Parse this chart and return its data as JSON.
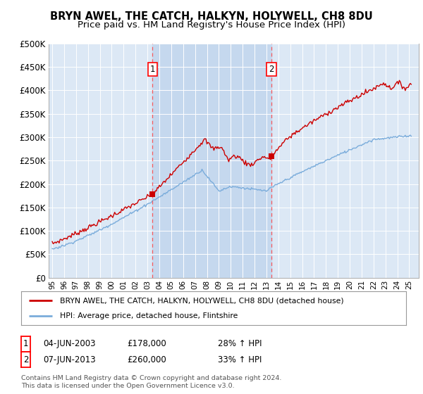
{
  "title": "BRYN AWEL, THE CATCH, HALKYN, HOLYWELL, CH8 8DU",
  "subtitle": "Price paid vs. HM Land Registry's House Price Index (HPI)",
  "ylim": [
    0,
    500000
  ],
  "yticks": [
    0,
    50000,
    100000,
    150000,
    200000,
    250000,
    300000,
    350000,
    400000,
    450000,
    500000
  ],
  "ytick_labels": [
    "£0",
    "£50K",
    "£100K",
    "£150K",
    "£200K",
    "£250K",
    "£300K",
    "£350K",
    "£400K",
    "£450K",
    "£500K"
  ],
  "xtick_years": [
    1995,
    1996,
    1997,
    1998,
    1999,
    2000,
    2001,
    2002,
    2003,
    2004,
    2005,
    2006,
    2007,
    2008,
    2009,
    2010,
    2011,
    2012,
    2013,
    2014,
    2015,
    2016,
    2017,
    2018,
    2019,
    2020,
    2021,
    2022,
    2023,
    2024,
    2025
  ],
  "xlim_start": 1994.7,
  "xlim_end": 2025.8,
  "sale1_x": 2003.43,
  "sale1_y": 178000,
  "sale2_x": 2013.43,
  "sale2_y": 260000,
  "line_color_property": "#cc0000",
  "line_color_hpi": "#7aacdb",
  "plot_bg_color": "#dce8f5",
  "shade_color": "#c5d8ee",
  "grid_color": "#ffffff",
  "legend_label_property": "BRYN AWEL, THE CATCH, HALKYN, HOLYWELL, CH8 8DU (detached house)",
  "legend_label_hpi": "HPI: Average price, detached house, Flintshire",
  "sale1_date": "04-JUN-2003",
  "sale1_price": "£178,000",
  "sale1_hpi": "28% ↑ HPI",
  "sale2_date": "07-JUN-2013",
  "sale2_price": "£260,000",
  "sale2_hpi": "33% ↑ HPI",
  "footer": "Contains HM Land Registry data © Crown copyright and database right 2024.\nThis data is licensed under the Open Government Licence v3.0.",
  "title_fontsize": 10.5,
  "subtitle_fontsize": 9.5
}
